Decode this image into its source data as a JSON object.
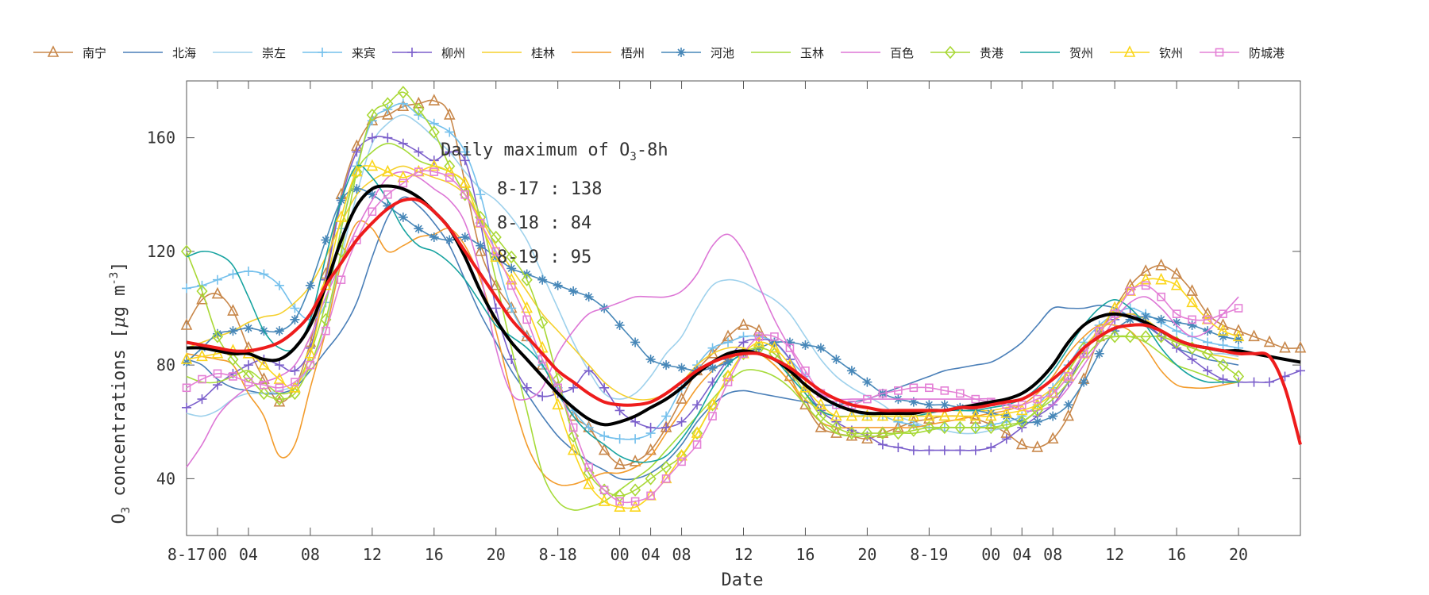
{
  "chart_data": {
    "type": "line",
    "xlabel": "Date",
    "ylabel": "O3 concentrations [μg m-3]",
    "ylabel_parts": {
      "main": "O",
      "sub": "3",
      "rest": " concentrations [",
      "mu": "μ",
      "unit": "g m",
      "sup": "-3",
      "close": "]"
    },
    "xlim": [
      0,
      72
    ],
    "ylim": [
      20,
      180
    ],
    "yticks": [
      40,
      80,
      120,
      160
    ],
    "xticks": [
      {
        "x": 0,
        "label": "8-17"
      },
      {
        "x": 2,
        "label": "00"
      },
      {
        "x": 4,
        "label": "04"
      },
      {
        "x": 8,
        "label": "08"
      },
      {
        "x": 12,
        "label": "12"
      },
      {
        "x": 16,
        "label": "16"
      },
      {
        "x": 20,
        "label": "20"
      },
      {
        "x": 24,
        "label": "8-18"
      },
      {
        "x": 28,
        "label": "00"
      },
      {
        "x": 30,
        "label": "04"
      },
      {
        "x": 32,
        "label": "08"
      },
      {
        "x": 36,
        "label": "12"
      },
      {
        "x": 40,
        "label": "16"
      },
      {
        "x": 44,
        "label": "20"
      },
      {
        "x": 48,
        "label": "8-19"
      },
      {
        "x": 52,
        "label": "00"
      },
      {
        "x": 54,
        "label": "04"
      },
      {
        "x": 56,
        "label": "08"
      },
      {
        "x": 60,
        "label": "12"
      },
      {
        "x": 64,
        "label": "16"
      },
      {
        "x": 68,
        "label": "20"
      }
    ],
    "grid": false,
    "legend_position": "top",
    "annotation": {
      "title_main": "Daily maximum of O",
      "title_sub": "3",
      "title_rest": "-8h",
      "lines": [
        "8-17 : 138",
        "8-18 : 84",
        "8-19 : 95"
      ]
    },
    "series": [
      {
        "name": "南宁",
        "color": "#c8874a",
        "marker": "triangle",
        "values": [
          94,
          103,
          105,
          99,
          86,
          75,
          67,
          72,
          88,
          112,
          140,
          157,
          166,
          168,
          171,
          172,
          173,
          168,
          144,
          120,
          108,
          100,
          90,
          80,
          72,
          62,
          58,
          50,
          45,
          46,
          50,
          58,
          68,
          78,
          84,
          90,
          94,
          92,
          86,
          76,
          66,
          58,
          56,
          55,
          54,
          56,
          58,
          60,
          61,
          62,
          62,
          61,
          59,
          56,
          52,
          51,
          54,
          62,
          75,
          90,
          100,
          108,
          113,
          115,
          112,
          106,
          98,
          94,
          92,
          90,
          88,
          86,
          86
        ]
      },
      {
        "name": "北海",
        "color": "#4a7fb8",
        "marker": "none",
        "values": [
          82,
          80,
          75,
          72,
          71,
          70,
          70,
          72,
          78,
          85,
          92,
          102,
          118,
          132,
          139,
          136,
          130,
          122,
          110,
          98,
          88,
          78,
          70,
          62,
          55,
          50,
          46,
          43,
          40,
          40,
          42,
          46,
          52,
          60,
          66,
          70,
          71,
          70,
          69,
          68,
          67,
          66,
          66,
          67,
          68,
          70,
          72,
          74,
          76,
          78,
          79,
          80,
          81,
          84,
          88,
          94,
          100,
          100,
          100,
          101,
          100,
          97,
          94,
          90,
          86,
          84,
          82,
          81,
          80
        ]
      },
      {
        "name": "崇左",
        "color": "#9ed1ec",
        "marker": "none",
        "values": [
          63,
          62,
          64,
          68,
          70,
          70,
          71,
          73,
          80,
          95,
          118,
          140,
          158,
          165,
          168,
          165,
          160,
          155,
          148,
          142,
          138,
          132,
          124,
          112,
          100,
          88,
          78,
          70,
          68,
          70,
          76,
          84,
          90,
          100,
          108,
          110,
          109,
          106,
          103,
          98,
          90,
          82,
          76,
          72,
          69,
          66,
          62,
          60,
          58,
          57,
          56,
          56,
          57,
          58,
          60,
          64,
          70,
          78,
          86,
          92,
          96,
          98,
          96,
          92,
          88,
          86,
          84,
          84,
          83
        ]
      },
      {
        "name": "来宾",
        "color": "#74c0ec",
        "marker": "plus",
        "values": [
          107,
          108,
          110,
          112,
          113,
          112,
          108,
          100,
          96,
          102,
          128,
          150,
          166,
          170,
          172,
          168,
          165,
          162,
          155,
          140,
          118,
          100,
          90,
          80,
          72,
          64,
          58,
          55,
          54,
          54,
          56,
          62,
          72,
          80,
          86,
          88,
          90,
          90,
          88,
          82,
          76,
          70,
          66,
          64,
          62,
          62,
          60,
          59,
          58,
          58,
          58,
          58,
          59,
          60,
          62,
          66,
          72,
          80,
          88,
          94,
          98,
          100,
          98,
          95,
          92,
          90,
          88,
          87,
          86
        ]
      },
      {
        "name": "柳州",
        "color": "#7b5fcb",
        "marker": "plus",
        "values": [
          65,
          68,
          73,
          77,
          80,
          82,
          80,
          78,
          86,
          110,
          138,
          155,
          160,
          160,
          158,
          155,
          152,
          155,
          152,
          130,
          100,
          82,
          72,
          69,
          70,
          72,
          78,
          72,
          64,
          60,
          58,
          58,
          60,
          66,
          74,
          82,
          88,
          89,
          88,
          82,
          72,
          64,
          60,
          57,
          55,
          52,
          51,
          50,
          50,
          50,
          50,
          50,
          51,
          54,
          58,
          62,
          66,
          74,
          84,
          92,
          96,
          98,
          95,
          90,
          86,
          82,
          78,
          75,
          74,
          74,
          74,
          76,
          78
        ]
      },
      {
        "name": "桂林",
        "color": "#f5d02d",
        "marker": "none",
        "values": [
          86,
          88,
          90,
          92,
          95,
          97,
          98,
          102,
          108,
          118,
          130,
          140,
          145,
          148,
          150,
          148,
          146,
          144,
          140,
          132,
          122,
          114,
          106,
          98,
          92,
          86,
          80,
          74,
          70,
          68,
          68,
          70,
          74,
          80,
          84,
          86,
          86,
          84,
          80,
          74,
          68,
          64,
          62,
          62,
          62,
          62,
          62,
          62,
          63,
          64,
          64,
          64,
          64,
          65,
          66,
          68,
          72,
          78,
          86,
          92,
          96,
          98,
          96,
          92,
          88,
          86,
          84,
          83,
          82
        ]
      },
      {
        "name": "梧州",
        "color": "#f39c2c",
        "marker": "none",
        "values": [
          84,
          83,
          82,
          80,
          70,
          62,
          48,
          52,
          72,
          92,
          116,
          130,
          128,
          120,
          122,
          125,
          126,
          128,
          122,
          110,
          92,
          70,
          52,
          42,
          38,
          38,
          40,
          42,
          42,
          44,
          48,
          56,
          64,
          72,
          78,
          82,
          84,
          84,
          80,
          74,
          66,
          60,
          58,
          58,
          58,
          58,
          58,
          58,
          59,
          60,
          61,
          62,
          63,
          64,
          66,
          70,
          76,
          84,
          90,
          94,
          94,
          92,
          86,
          78,
          73,
          72,
          72,
          73,
          74
        ]
      },
      {
        "name": "河池",
        "color": "#4787b8",
        "marker": "star",
        "values": [
          81,
          86,
          91,
          92,
          93,
          92,
          92,
          96,
          108,
          124,
          138,
          142,
          140,
          136,
          132,
          128,
          125,
          124,
          125,
          122,
          118,
          114,
          112,
          110,
          108,
          106,
          104,
          100,
          94,
          88,
          82,
          80,
          79,
          78,
          79,
          81,
          84,
          86,
          88,
          88,
          87,
          86,
          82,
          78,
          74,
          70,
          68,
          67,
          66,
          66,
          65,
          64,
          63,
          62,
          60,
          60,
          62,
          66,
          74,
          84,
          92,
          96,
          97,
          96,
          95,
          94,
          92,
          90,
          89
        ]
      },
      {
        "name": "玉林",
        "color": "#a6db3a",
        "marker": "none",
        "values": [
          76,
          74,
          74,
          76,
          78,
          74,
          70,
          72,
          84,
          102,
          128,
          148,
          155,
          158,
          156,
          152,
          150,
          148,
          144,
          132,
          110,
          86,
          64,
          42,
          32,
          29,
          30,
          32,
          36,
          40,
          44,
          50,
          56,
          62,
          68,
          74,
          78,
          78,
          76,
          72,
          66,
          60,
          56,
          55,
          55,
          55,
          56,
          56,
          57,
          58,
          58,
          58,
          58,
          58,
          60,
          64,
          68,
          74,
          82,
          88,
          90,
          90,
          88,
          84,
          80,
          78,
          76,
          74,
          74
        ]
      },
      {
        "name": "百色",
        "color": "#dd77d6",
        "marker": "none",
        "values": [
          44,
          52,
          62,
          68,
          72,
          74,
          76,
          80,
          90,
          104,
          116,
          128,
          138,
          146,
          148,
          146,
          142,
          138,
          130,
          112,
          86,
          70,
          68,
          72,
          84,
          92,
          98,
          100,
          102,
          104,
          104,
          104,
          106,
          112,
          122,
          126,
          120,
          108,
          96,
          86,
          76,
          70,
          68,
          68,
          68,
          68,
          68,
          68,
          68,
          68,
          68,
          68,
          68,
          66,
          64,
          64,
          66,
          72,
          80,
          88,
          96,
          102,
          104,
          100,
          94,
          90,
          92,
          98,
          104
        ]
      },
      {
        "name": "贵港",
        "color": "#a9d836",
        "marker": "diamond",
        "values": [
          120,
          106,
          90,
          82,
          76,
          70,
          68,
          70,
          80,
          96,
          120,
          148,
          168,
          172,
          176,
          170,
          162,
          150,
          140,
          132,
          125,
          118,
          110,
          95,
          75,
          55,
          42,
          36,
          34,
          36,
          40,
          44,
          48,
          56,
          66,
          76,
          84,
          86,
          84,
          78,
          70,
          62,
          58,
          56,
          56,
          56,
          56,
          57,
          58,
          58,
          58,
          58,
          58,
          59,
          60,
          64,
          70,
          78,
          86,
          90,
          90,
          90,
          90,
          90,
          88,
          86,
          84,
          80,
          76
        ]
      },
      {
        "name": "贺州",
        "color": "#17a3a0",
        "marker": "none",
        "values": [
          118,
          120,
          119,
          115,
          104,
          92,
          86,
          86,
          96,
          118,
          138,
          150,
          146,
          138,
          128,
          122,
          120,
          116,
          110,
          102,
          94,
          90,
          86,
          80,
          70,
          62,
          56,
          52,
          48,
          46,
          46,
          48,
          54,
          62,
          72,
          80,
          84,
          84,
          82,
          76,
          70,
          64,
          62,
          62,
          62,
          62,
          62,
          62,
          63,
          64,
          64,
          64,
          65,
          66,
          68,
          72,
          78,
          86,
          94,
          100,
          103,
          100,
          94,
          86,
          80,
          76,
          74,
          74,
          74
        ]
      },
      {
        "name": "钦州",
        "color": "#fbd61c",
        "marker": "triangle",
        "values": [
          82,
          83,
          84,
          85,
          84,
          80,
          75,
          72,
          84,
          108,
          132,
          148,
          150,
          148,
          146,
          148,
          150,
          148,
          144,
          130,
          118,
          110,
          100,
          86,
          66,
          50,
          38,
          32,
          30,
          30,
          34,
          40,
          48,
          56,
          66,
          76,
          84,
          88,
          86,
          80,
          72,
          66,
          62,
          62,
          62,
          62,
          62,
          62,
          62,
          62,
          62,
          62,
          62,
          63,
          64,
          66,
          70,
          76,
          84,
          92,
          100,
          106,
          110,
          110,
          108,
          102,
          96,
          92,
          90
        ]
      },
      {
        "name": "防城港",
        "color": "#e480d6",
        "marker": "square",
        "values": [
          72,
          75,
          77,
          76,
          74,
          73,
          72,
          74,
          80,
          92,
          110,
          124,
          134,
          140,
          144,
          148,
          148,
          146,
          140,
          130,
          120,
          108,
          96,
          82,
          72,
          58,
          44,
          36,
          32,
          32,
          34,
          40,
          46,
          52,
          62,
          74,
          84,
          90,
          90,
          86,
          78,
          70,
          66,
          66,
          68,
          70,
          71,
          72,
          72,
          71,
          70,
          68,
          67,
          66,
          66,
          68,
          70,
          76,
          84,
          92,
          98,
          106,
          108,
          104,
          98,
          96,
          96,
          98,
          100
        ]
      },
      {
        "name": "",
        "color": "#000000",
        "marker": "none",
        "bold": true,
        "values": [
          86,
          86,
          85,
          84,
          84,
          82,
          82,
          86,
          94,
          108,
          124,
          136,
          142,
          143,
          142,
          139,
          134,
          128,
          118,
          106,
          96,
          88,
          82,
          76,
          70,
          65,
          61,
          59,
          60,
          62,
          65,
          68,
          72,
          77,
          81,
          84,
          85,
          84,
          82,
          78,
          73,
          69,
          66,
          64,
          63,
          63,
          63,
          63,
          64,
          64,
          65,
          66,
          67,
          68,
          70,
          74,
          80,
          88,
          94,
          97,
          98,
          97,
          95,
          92,
          89,
          87,
          86,
          85,
          85,
          84,
          83,
          82,
          81
        ]
      },
      {
        "name": "",
        "color": "#ee1c1c",
        "marker": "none",
        "bold": true,
        "values": [
          88,
          87,
          86,
          85,
          85,
          86,
          88,
          92,
          98,
          108,
          116,
          124,
          130,
          135,
          138,
          138,
          134,
          128,
          120,
          112,
          104,
          96,
          90,
          84,
          78,
          74,
          70,
          67,
          66,
          66,
          67,
          70,
          74,
          78,
          81,
          83,
          84,
          84,
          82,
          79,
          75,
          71,
          68,
          66,
          65,
          64,
          64,
          64,
          64,
          64,
          65,
          65,
          66,
          67,
          68,
          71,
          75,
          80,
          86,
          90,
          93,
          94,
          94,
          92,
          89,
          87,
          86,
          85,
          84,
          84,
          83,
          72,
          52
        ]
      }
    ]
  }
}
